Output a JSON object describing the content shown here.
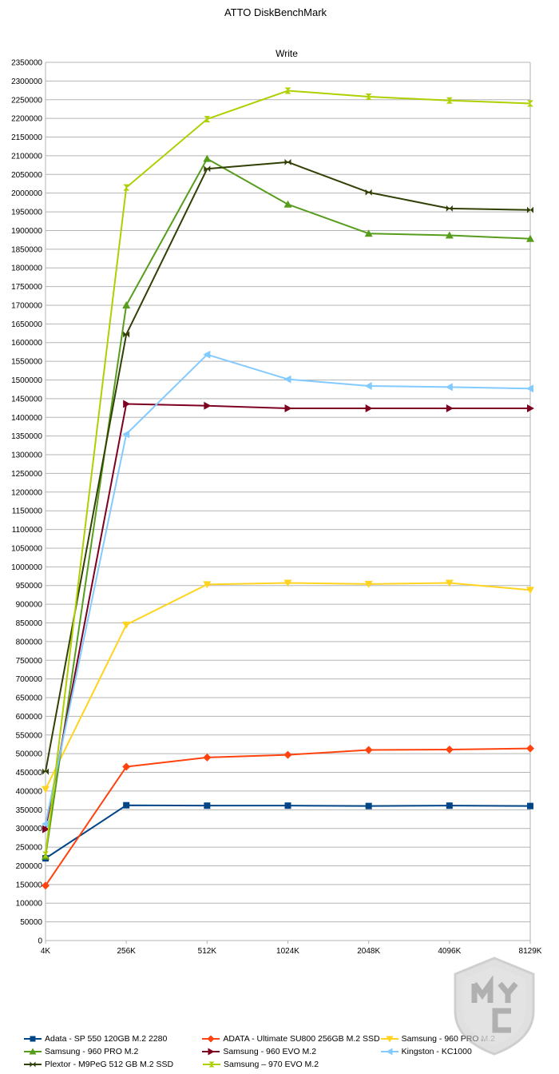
{
  "chart_data": {
    "type": "line",
    "title": "ATTO DiskBenchMark",
    "subtitle": "Write",
    "categories": [
      "4K",
      "256K",
      "512K",
      "1024K",
      "2048K",
      "4096K",
      "8129K"
    ],
    "ylim": [
      0,
      2350000
    ],
    "ytick_step": 50000,
    "grid": "horizontal",
    "legend_position": "bottom",
    "series": [
      {
        "name": "Adata - SP 550 120GB M.2 2280",
        "color": "#004586",
        "marker": "square",
        "values": [
          220000,
          362000,
          361000,
          361000,
          360000,
          361000,
          360000
        ]
      },
      {
        "name": "ADATA - Ultimate SU800 256GB M.2 SSD",
        "color": "#ff420e",
        "marker": "diamond",
        "values": [
          147000,
          465000,
          490000,
          497000,
          510000,
          511000,
          514000
        ]
      },
      {
        "name": "Samsung - 960 PRO M.2",
        "color": "#ffd320",
        "marker": "triangle-down",
        "values": [
          405000,
          845000,
          953000,
          957000,
          954000,
          957000,
          938000
        ]
      },
      {
        "name": "Samsung - 960 PRO M.2",
        "color": "#579d1c",
        "marker": "triangle-up",
        "values": [
          225000,
          1700000,
          2092000,
          1970000,
          1892000,
          1887000,
          1878000
        ]
      },
      {
        "name": "Samsung - 960 EVO M.2",
        "color": "#7e0021",
        "marker": "triangle-right",
        "values": [
          298000,
          1436000,
          1431000,
          1424000,
          1424000,
          1424000,
          1424000
        ]
      },
      {
        "name": "Kingston - KC1000",
        "color": "#83caff",
        "marker": "triangle-left",
        "values": [
          312000,
          1355000,
          1568000,
          1502000,
          1484000,
          1481000,
          1477000
        ]
      },
      {
        "name": "Plextor - M9PeG 512 GB M.2 SSD",
        "color": "#314004",
        "marker": "bowtie",
        "values": [
          452000,
          1622000,
          2065000,
          2083000,
          2002000,
          1959000,
          1955000
        ]
      },
      {
        "name": "Samsung – 970 EVO M.2",
        "color": "#aecf00",
        "marker": "hourglass",
        "values": [
          230000,
          2015000,
          2198000,
          2274000,
          2258000,
          2248000,
          2240000
        ]
      }
    ]
  }
}
